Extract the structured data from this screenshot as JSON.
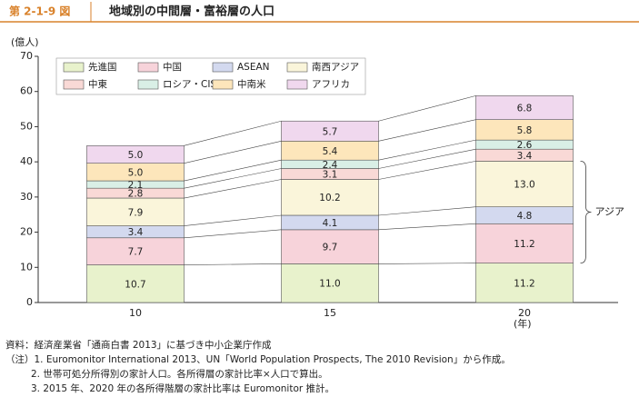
{
  "chart_data": {
    "type": "stacked_bar",
    "figure_number": "第 2-1-9 図",
    "title": "地域別の中間層・富裕層の人口",
    "y_unit": "(億人)",
    "x_unit": "(年)",
    "categories": [
      "10",
      "15",
      "20"
    ],
    "ylim": [
      0,
      70
    ],
    "yticks": [
      0,
      10,
      20,
      30,
      40,
      50,
      60,
      70
    ],
    "series": [
      {
        "name": "先進国",
        "color": "#e8f2cc",
        "values": [
          10.7,
          11.0,
          11.2
        ],
        "value_labels": [
          "10.7",
          "11.0",
          "11.2"
        ]
      },
      {
        "name": "中国",
        "color": "#f7d3da",
        "values": [
          7.7,
          9.7,
          11.2
        ],
        "value_labels": [
          "7.7",
          "9.7",
          "11.2"
        ]
      },
      {
        "name": "ASEAN",
        "color": "#d3d9ef",
        "values": [
          3.4,
          4.1,
          4.8
        ],
        "value_labels": [
          "3.4",
          "4.1",
          "4.8"
        ]
      },
      {
        "name": "南西アジア",
        "color": "#faf5da",
        "values": [
          7.9,
          10.2,
          13.0
        ],
        "value_labels": [
          "7.9",
          "10.2",
          "13.0"
        ]
      },
      {
        "name": "中東",
        "color": "#f9d9d6",
        "values": [
          2.8,
          3.1,
          3.4
        ],
        "value_labels": [
          "2.8",
          "3.1",
          "3.4"
        ]
      },
      {
        "name": "ロシア・CIS",
        "color": "#d9efe6",
        "values": [
          2.1,
          2.4,
          2.6
        ],
        "value_labels": [
          "2.1",
          "2.4",
          "2.6"
        ]
      },
      {
        "name": "中南米",
        "color": "#fde6bb",
        "values": [
          5.0,
          5.4,
          5.8
        ],
        "value_labels": [
          "5.0",
          "5.4",
          "5.8"
        ]
      },
      {
        "name": "アフリカ",
        "color": "#f0d8ee",
        "values": [
          5.0,
          5.7,
          6.8
        ],
        "value_labels": [
          "5.0",
          "5.7",
          "6.8"
        ]
      }
    ],
    "annotation": "アジア",
    "notes": [
      "資料：経済産業省「通商白書 2013」に基づき中小企業庁作成",
      "（注）1.  Euromonitor International 2013、UN「World Population Prospects, The 2010 Revision」から作成。",
      "2.  世帯可処分所得別の家計人口。各所得層の家計比率×人口で算出。",
      "3.  2015 年、2020 年の各所得階層の家計比率は Euromonitor 推計。"
    ]
  }
}
